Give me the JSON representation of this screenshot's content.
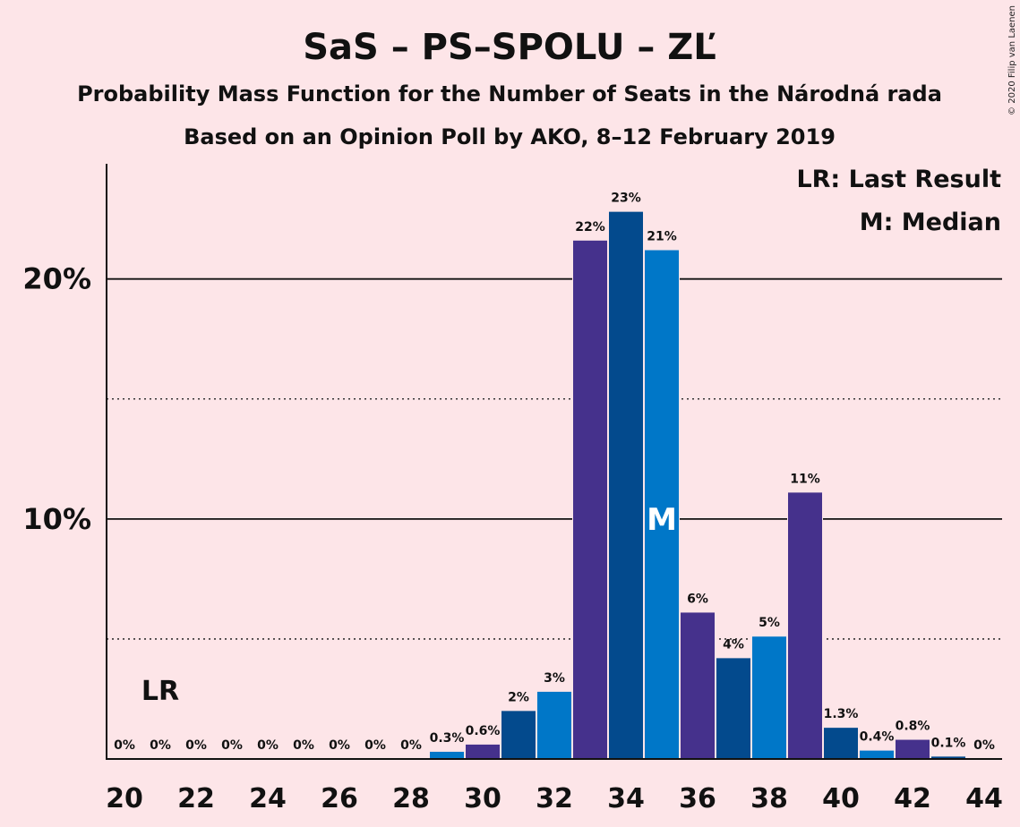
{
  "chart_data": {
    "type": "bar",
    "title": "SaS – PS–SPOLU – ZĽ",
    "subtitle1": "Probability Mass Function for the Number of Seats in the Národná rada",
    "subtitle2": "Based on an Opinion Poll by AKO, 8–12 February 2019",
    "copyright": "© 2020 Filip van Laenen",
    "legend": {
      "lr": "LR: Last Result",
      "m": "M: Median",
      "placement": "top-right"
    },
    "lr_marker": {
      "label": "LR",
      "seats": 21
    },
    "median_marker": {
      "label": "M",
      "seats": 35
    },
    "ylim": [
      0,
      24.8
    ],
    "xlim": [
      20,
      44
    ],
    "yticks": [
      {
        "value": 10,
        "label": "10%"
      },
      {
        "value": 20,
        "label": "20%"
      }
    ],
    "dotted_gridlines": [
      5,
      15
    ],
    "xticks": [
      "20",
      "22",
      "24",
      "26",
      "28",
      "30",
      "32",
      "34",
      "36",
      "38",
      "40",
      "42",
      "44"
    ],
    "colors": [
      "#0077C8",
      "#45318C",
      "#034A8D"
    ],
    "bars": [
      {
        "seats": 20,
        "value": 0,
        "label": "0%"
      },
      {
        "seats": 21,
        "value": 0,
        "label": "0%"
      },
      {
        "seats": 22,
        "value": 0,
        "label": "0%"
      },
      {
        "seats": 23,
        "value": 0,
        "label": "0%"
      },
      {
        "seats": 24,
        "value": 0,
        "label": "0%"
      },
      {
        "seats": 25,
        "value": 0,
        "label": "0%"
      },
      {
        "seats": 26,
        "value": 0,
        "label": "0%"
      },
      {
        "seats": 27,
        "value": 0,
        "label": "0%"
      },
      {
        "seats": 28,
        "value": 0,
        "label": "0%"
      },
      {
        "seats": 29,
        "value": 0.3,
        "label": "0.3%"
      },
      {
        "seats": 30,
        "value": 0.6,
        "label": "0.6%"
      },
      {
        "seats": 31,
        "value": 2.0,
        "label": "2%"
      },
      {
        "seats": 32,
        "value": 2.8,
        "label": "3%"
      },
      {
        "seats": 33,
        "value": 21.6,
        "label": "22%"
      },
      {
        "seats": 34,
        "value": 22.8,
        "label": "23%"
      },
      {
        "seats": 35,
        "value": 21.2,
        "label": "21%"
      },
      {
        "seats": 36,
        "value": 6.1,
        "label": "6%"
      },
      {
        "seats": 37,
        "value": 4.2,
        "label": "4%"
      },
      {
        "seats": 38,
        "value": 5.1,
        "label": "5%"
      },
      {
        "seats": 39,
        "value": 11.1,
        "label": "11%"
      },
      {
        "seats": 40,
        "value": 1.3,
        "label": "1.3%"
      },
      {
        "seats": 41,
        "value": 0.35,
        "label": "0.4%"
      },
      {
        "seats": 42,
        "value": 0.8,
        "label": "0.8%"
      },
      {
        "seats": 43,
        "value": 0.1,
        "label": "0.1%"
      },
      {
        "seats": 44,
        "value": 0,
        "label": "0%"
      }
    ]
  }
}
